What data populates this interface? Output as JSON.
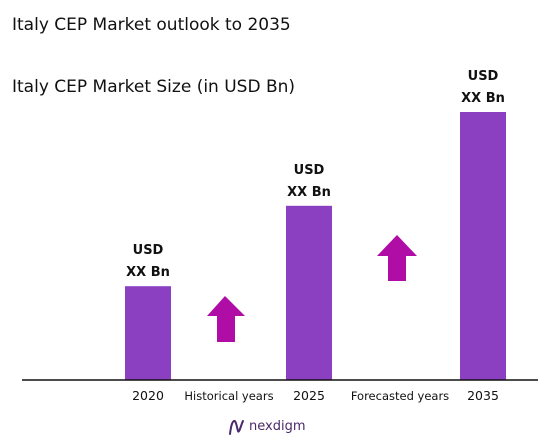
{
  "chart_data": {
    "type": "bar",
    "title": "Italy CEP Market outlook to 2035",
    "subtitle": "Italy CEP Market Size (in USD Bn)",
    "categories": [
      "2020",
      "2025",
      "2035"
    ],
    "values": [
      35,
      65,
      100
    ],
    "value_labels": [
      [
        "USD",
        "XX Bn"
      ],
      [
        "USD",
        "XX Bn"
      ],
      [
        "USD",
        "XX Bn"
      ]
    ],
    "ylim": [
      0,
      100
    ],
    "grid": false,
    "legend": "none",
    "period_labels": [
      "Historical years",
      "Forecasted years"
    ],
    "bar_color": "#8b3fc1",
    "arrow_color": "#b00ca6"
  },
  "brand": {
    "name": "nexdigm",
    "icon": "nexdigm-logo-icon"
  }
}
